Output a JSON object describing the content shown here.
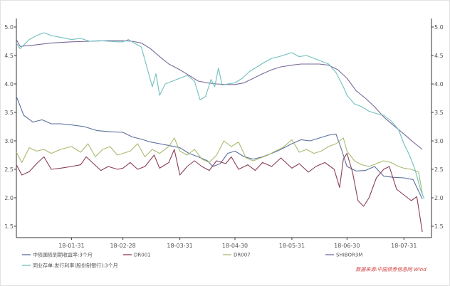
{
  "chart_data": {
    "type": "line",
    "title": "",
    "xlabel": "",
    "ylabel": "",
    "ylim": [
      1.3,
      5.05
    ],
    "xlim": [
      "2018-01-01",
      "2018-08-15"
    ],
    "yticks": [
      "1.5",
      "2.0",
      "2.5",
      "3.0",
      "3.5",
      "4.0",
      "4.5",
      "5.0"
    ],
    "xticks": [
      {
        "date": "2018-01-31",
        "label": "18-01-31"
      },
      {
        "date": "2018-02-28",
        "label": "18-02-28"
      },
      {
        "date": "2018-03-31",
        "label": "18-03-31"
      },
      {
        "date": "2018-04-30",
        "label": "18-04-30"
      },
      {
        "date": "2018-05-31",
        "label": "18-05-31"
      },
      {
        "date": "2018-06-30",
        "label": "18-06-30"
      },
      {
        "date": "2018-07-31",
        "label": "18-07-31"
      }
    ],
    "dual_axis": "same scale on left and right",
    "grid": false,
    "legend_position": "bottom",
    "source_note": "数据来源:中国债券信息网 Wind",
    "series": [
      {
        "name": "中债国债到期收益率:3个月",
        "color": "#5a6e9e",
        "points": [
          [
            "2018-01-01",
            3.78
          ],
          [
            "2018-01-05",
            3.45
          ],
          [
            "2018-01-10",
            3.33
          ],
          [
            "2018-01-15",
            3.37
          ],
          [
            "2018-01-20",
            3.3
          ],
          [
            "2018-01-25",
            3.3
          ],
          [
            "2018-01-31",
            3.28
          ],
          [
            "2018-02-07",
            3.25
          ],
          [
            "2018-02-14",
            3.18
          ],
          [
            "2018-02-21",
            3.16
          ],
          [
            "2018-02-28",
            3.15
          ],
          [
            "2018-03-05",
            3.07
          ],
          [
            "2018-03-10",
            3.03
          ],
          [
            "2018-03-15",
            2.98
          ],
          [
            "2018-03-20",
            2.95
          ],
          [
            "2018-03-25",
            2.92
          ],
          [
            "2018-03-31",
            2.88
          ],
          [
            "2018-04-05",
            2.78
          ],
          [
            "2018-04-10",
            2.72
          ],
          [
            "2018-04-15",
            2.65
          ],
          [
            "2018-04-18",
            2.55
          ],
          [
            "2018-04-22",
            2.6
          ],
          [
            "2018-04-26",
            2.78
          ],
          [
            "2018-04-30",
            2.82
          ],
          [
            "2018-05-05",
            2.72
          ],
          [
            "2018-05-10",
            2.68
          ],
          [
            "2018-05-15",
            2.72
          ],
          [
            "2018-05-20",
            2.78
          ],
          [
            "2018-05-25",
            2.85
          ],
          [
            "2018-05-31",
            2.95
          ],
          [
            "2018-06-05",
            3.02
          ],
          [
            "2018-06-10",
            3.0
          ],
          [
            "2018-06-15",
            3.05
          ],
          [
            "2018-06-20",
            3.1
          ],
          [
            "2018-06-24",
            3.12
          ],
          [
            "2018-06-27",
            2.85
          ],
          [
            "2018-06-30",
            2.55
          ],
          [
            "2018-07-05",
            2.47
          ],
          [
            "2018-07-10",
            2.48
          ],
          [
            "2018-07-15",
            2.55
          ],
          [
            "2018-07-20",
            2.38
          ],
          [
            "2018-07-25",
            2.36
          ],
          [
            "2018-07-31",
            2.35
          ],
          [
            "2018-08-05",
            2.32
          ],
          [
            "2018-08-10",
            1.98
          ]
        ]
      },
      {
        "name": "DR001",
        "color": "#8a3d54",
        "points": [
          [
            "2018-01-01",
            2.58
          ],
          [
            "2018-01-04",
            2.4
          ],
          [
            "2018-01-08",
            2.46
          ],
          [
            "2018-01-12",
            2.6
          ],
          [
            "2018-01-16",
            2.72
          ],
          [
            "2018-01-20",
            2.5
          ],
          [
            "2018-01-25",
            2.52
          ],
          [
            "2018-01-31",
            2.55
          ],
          [
            "2018-02-05",
            2.58
          ],
          [
            "2018-02-08",
            2.72
          ],
          [
            "2018-02-12",
            2.6
          ],
          [
            "2018-02-16",
            2.48
          ],
          [
            "2018-02-20",
            2.55
          ],
          [
            "2018-02-25",
            2.5
          ],
          [
            "2018-02-28",
            2.52
          ],
          [
            "2018-03-04",
            2.62
          ],
          [
            "2018-03-08",
            2.5
          ],
          [
            "2018-03-12",
            2.55
          ],
          [
            "2018-03-17",
            2.75
          ],
          [
            "2018-03-20",
            2.52
          ],
          [
            "2018-03-25",
            2.62
          ],
          [
            "2018-03-28",
            2.85
          ],
          [
            "2018-03-31",
            2.4
          ],
          [
            "2018-04-04",
            2.55
          ],
          [
            "2018-04-08",
            2.65
          ],
          [
            "2018-04-12",
            2.55
          ],
          [
            "2018-04-16",
            2.48
          ],
          [
            "2018-04-20",
            2.65
          ],
          [
            "2018-04-25",
            2.6
          ],
          [
            "2018-04-28",
            2.72
          ],
          [
            "2018-05-02",
            2.5
          ],
          [
            "2018-05-07",
            2.58
          ],
          [
            "2018-05-11",
            2.48
          ],
          [
            "2018-05-15",
            2.62
          ],
          [
            "2018-05-20",
            2.55
          ],
          [
            "2018-05-25",
            2.7
          ],
          [
            "2018-05-31",
            2.52
          ],
          [
            "2018-06-04",
            2.6
          ],
          [
            "2018-06-09",
            2.45
          ],
          [
            "2018-06-13",
            2.55
          ],
          [
            "2018-06-18",
            2.62
          ],
          [
            "2018-06-23",
            2.5
          ],
          [
            "2018-06-26",
            2.18
          ],
          [
            "2018-06-28",
            2.68
          ],
          [
            "2018-06-30",
            2.78
          ],
          [
            "2018-07-03",
            2.45
          ],
          [
            "2018-07-06",
            1.95
          ],
          [
            "2018-07-09",
            1.85
          ],
          [
            "2018-07-12",
            2.0
          ],
          [
            "2018-07-16",
            2.35
          ],
          [
            "2018-07-20",
            2.5
          ],
          [
            "2018-07-23",
            2.55
          ],
          [
            "2018-07-27",
            2.15
          ],
          [
            "2018-07-31",
            2.05
          ],
          [
            "2018-08-04",
            1.95
          ],
          [
            "2018-08-07",
            2.02
          ],
          [
            "2018-08-10",
            1.4
          ]
        ]
      },
      {
        "name": "DR007",
        "color": "#a8ba6e",
        "points": [
          [
            "2018-01-01",
            2.8
          ],
          [
            "2018-01-04",
            2.62
          ],
          [
            "2018-01-08",
            2.88
          ],
          [
            "2018-01-12",
            2.82
          ],
          [
            "2018-01-16",
            2.85
          ],
          [
            "2018-01-20",
            2.78
          ],
          [
            "2018-01-25",
            2.85
          ],
          [
            "2018-01-31",
            2.9
          ],
          [
            "2018-02-05",
            2.8
          ],
          [
            "2018-02-09",
            2.95
          ],
          [
            "2018-02-13",
            2.72
          ],
          [
            "2018-02-17",
            2.85
          ],
          [
            "2018-02-21",
            2.9
          ],
          [
            "2018-02-25",
            2.75
          ],
          [
            "2018-02-28",
            2.78
          ],
          [
            "2018-03-04",
            2.82
          ],
          [
            "2018-03-08",
            2.95
          ],
          [
            "2018-03-12",
            2.72
          ],
          [
            "2018-03-16",
            2.85
          ],
          [
            "2018-03-20",
            2.78
          ],
          [
            "2018-03-25",
            2.9
          ],
          [
            "2018-03-28",
            3.05
          ],
          [
            "2018-03-31",
            2.82
          ],
          [
            "2018-04-04",
            2.75
          ],
          [
            "2018-04-08",
            2.85
          ],
          [
            "2018-04-12",
            2.68
          ],
          [
            "2018-04-16",
            2.62
          ],
          [
            "2018-04-20",
            2.75
          ],
          [
            "2018-04-24",
            3.0
          ],
          [
            "2018-04-28",
            2.9
          ],
          [
            "2018-05-02",
            2.98
          ],
          [
            "2018-05-06",
            2.7
          ],
          [
            "2018-05-10",
            2.65
          ],
          [
            "2018-05-14",
            2.7
          ],
          [
            "2018-05-18",
            2.75
          ],
          [
            "2018-05-22",
            2.82
          ],
          [
            "2018-05-26",
            2.88
          ],
          [
            "2018-05-31",
            3.02
          ],
          [
            "2018-06-04",
            2.8
          ],
          [
            "2018-06-08",
            2.85
          ],
          [
            "2018-06-12",
            2.78
          ],
          [
            "2018-06-16",
            2.82
          ],
          [
            "2018-06-20",
            2.9
          ],
          [
            "2018-06-24",
            2.95
          ],
          [
            "2018-06-28",
            3.05
          ],
          [
            "2018-06-30",
            2.82
          ],
          [
            "2018-07-04",
            2.65
          ],
          [
            "2018-07-08",
            2.58
          ],
          [
            "2018-07-12",
            2.55
          ],
          [
            "2018-07-16",
            2.6
          ],
          [
            "2018-07-20",
            2.65
          ],
          [
            "2018-07-24",
            2.62
          ],
          [
            "2018-07-28",
            2.55
          ],
          [
            "2018-07-31",
            2.52
          ],
          [
            "2018-08-04",
            2.5
          ],
          [
            "2018-08-08",
            2.45
          ],
          [
            "2018-08-10",
            2.08
          ]
        ]
      },
      {
        "name": "SHIBOR3M",
        "color": "#7a6a9a",
        "points": [
          [
            "2018-01-01",
            4.78
          ],
          [
            "2018-01-03",
            4.66
          ],
          [
            "2018-01-10",
            4.68
          ],
          [
            "2018-01-20",
            4.72
          ],
          [
            "2018-01-31",
            4.74
          ],
          [
            "2018-02-10",
            4.75
          ],
          [
            "2018-02-20",
            4.76
          ],
          [
            "2018-02-28",
            4.76
          ],
          [
            "2018-03-05",
            4.75
          ],
          [
            "2018-03-10",
            4.72
          ],
          [
            "2018-03-15",
            4.62
          ],
          [
            "2018-03-20",
            4.48
          ],
          [
            "2018-03-25",
            4.35
          ],
          [
            "2018-03-31",
            4.25
          ],
          [
            "2018-04-05",
            4.15
          ],
          [
            "2018-04-10",
            4.05
          ],
          [
            "2018-04-15",
            4.02
          ],
          [
            "2018-04-20",
            4.0
          ],
          [
            "2018-04-25",
            3.99
          ],
          [
            "2018-04-30",
            3.99
          ],
          [
            "2018-05-05",
            4.02
          ],
          [
            "2018-05-10",
            4.1
          ],
          [
            "2018-05-15",
            4.18
          ],
          [
            "2018-05-20",
            4.25
          ],
          [
            "2018-05-25",
            4.3
          ],
          [
            "2018-05-31",
            4.33
          ],
          [
            "2018-06-05",
            4.35
          ],
          [
            "2018-06-10",
            4.35
          ],
          [
            "2018-06-15",
            4.35
          ],
          [
            "2018-06-20",
            4.33
          ],
          [
            "2018-06-25",
            4.25
          ],
          [
            "2018-06-30",
            4.1
          ],
          [
            "2018-07-05",
            3.88
          ],
          [
            "2018-07-10",
            3.75
          ],
          [
            "2018-07-15",
            3.6
          ],
          [
            "2018-07-20",
            3.42
          ],
          [
            "2018-07-25",
            3.28
          ],
          [
            "2018-07-31",
            3.12
          ],
          [
            "2018-08-05",
            2.98
          ],
          [
            "2018-08-10",
            2.85
          ]
        ]
      },
      {
        "name": "同业存单:发行利率(股份制银行):3个月",
        "color": "#6fc0bd",
        "points": [
          [
            "2018-01-01",
            4.72
          ],
          [
            "2018-01-03",
            4.62
          ],
          [
            "2018-01-08",
            4.78
          ],
          [
            "2018-01-12",
            4.85
          ],
          [
            "2018-01-16",
            4.9
          ],
          [
            "2018-01-20",
            4.85
          ],
          [
            "2018-01-25",
            4.82
          ],
          [
            "2018-01-31",
            4.78
          ],
          [
            "2018-02-05",
            4.8
          ],
          [
            "2018-02-10",
            4.75
          ],
          [
            "2018-02-15",
            4.76
          ],
          [
            "2018-02-20",
            4.75
          ],
          [
            "2018-02-25",
            4.74
          ],
          [
            "2018-02-28",
            4.74
          ],
          [
            "2018-03-03",
            4.78
          ],
          [
            "2018-03-06",
            4.72
          ],
          [
            "2018-03-10",
            4.65
          ],
          [
            "2018-03-13",
            4.3
          ],
          [
            "2018-03-16",
            3.95
          ],
          [
            "2018-03-18",
            4.18
          ],
          [
            "2018-03-20",
            3.8
          ],
          [
            "2018-03-23",
            4.0
          ],
          [
            "2018-03-27",
            4.05
          ],
          [
            "2018-03-31",
            4.1
          ],
          [
            "2018-04-04",
            4.15
          ],
          [
            "2018-04-08",
            4.05
          ],
          [
            "2018-04-11",
            3.72
          ],
          [
            "2018-04-14",
            3.78
          ],
          [
            "2018-04-17",
            4.08
          ],
          [
            "2018-04-19",
            3.95
          ],
          [
            "2018-04-21",
            4.28
          ],
          [
            "2018-04-23",
            3.98
          ],
          [
            "2018-04-26",
            4.0
          ],
          [
            "2018-04-30",
            4.02
          ],
          [
            "2018-05-04",
            4.1
          ],
          [
            "2018-05-08",
            4.22
          ],
          [
            "2018-05-12",
            4.3
          ],
          [
            "2018-05-16",
            4.38
          ],
          [
            "2018-05-20",
            4.45
          ],
          [
            "2018-05-24",
            4.48
          ],
          [
            "2018-05-28",
            4.52
          ],
          [
            "2018-05-31",
            4.55
          ],
          [
            "2018-06-04",
            4.48
          ],
          [
            "2018-06-08",
            4.5
          ],
          [
            "2018-06-12",
            4.45
          ],
          [
            "2018-06-16",
            4.4
          ],
          [
            "2018-06-20",
            4.35
          ],
          [
            "2018-06-24",
            4.2
          ],
          [
            "2018-06-28",
            3.95
          ],
          [
            "2018-06-30",
            3.8
          ],
          [
            "2018-07-04",
            3.65
          ],
          [
            "2018-07-08",
            3.6
          ],
          [
            "2018-07-12",
            3.52
          ],
          [
            "2018-07-16",
            3.48
          ],
          [
            "2018-07-20",
            3.45
          ],
          [
            "2018-07-24",
            3.35
          ],
          [
            "2018-07-28",
            3.2
          ],
          [
            "2018-07-31",
            2.95
          ],
          [
            "2018-08-03",
            2.75
          ],
          [
            "2018-08-06",
            2.5
          ],
          [
            "2018-08-09",
            2.15
          ],
          [
            "2018-08-11",
            1.98
          ]
        ]
      }
    ]
  }
}
